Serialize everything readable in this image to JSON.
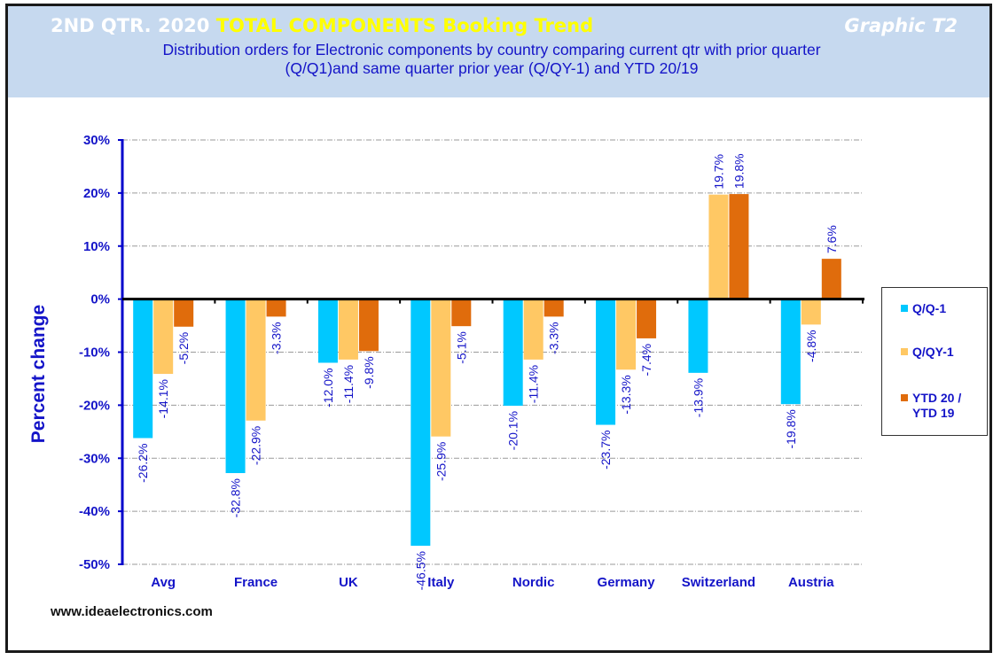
{
  "header": {
    "title_part1": "2ND QTR. 2020",
    "title_part2": "TOTAL COMPONENTS  Booking Trend",
    "graphic_tag": "Graphic T2",
    "subtitle_line1": "Distribution  orders for Electronic components by country comparing  current qtr with prior quarter",
    "subtitle_line2": "(Q/Q1)and  same quarter prior year (Q/QY-1)  and YTD  20/19"
  },
  "footer": {
    "website": "www.ideaelectronics.com"
  },
  "colors": {
    "header_bg": "#c6d9ef",
    "text_blue": "#1414c8",
    "series_qq1": "#00c8ff",
    "series_qqy1": "#ffc864",
    "series_ytd": "#e06c0c"
  },
  "chart_data": {
    "type": "bar",
    "title": "2ND QTR. 2020 TOTAL COMPONENTS Booking Trend",
    "xlabel": "",
    "ylabel": "Percent change",
    "ylim": [
      -50,
      30
    ],
    "yticks": [
      30,
      20,
      10,
      0,
      -10,
      -20,
      -30,
      -40,
      -50
    ],
    "ytick_labels": [
      "30%",
      "20%",
      "10%",
      "0%",
      "-10%",
      "-20%",
      "-30%",
      "-40%",
      "-50%"
    ],
    "grid": true,
    "legend_position": "right",
    "categories": [
      "Avg",
      "France",
      "UK",
      "Italy",
      "Nordic",
      "Germany",
      "Switzerland",
      "Austria"
    ],
    "series": [
      {
        "name": "Q/Q-1",
        "color": "#00c8ff",
        "values": [
          -26.2,
          -32.8,
          -12.0,
          -46.5,
          -20.1,
          -23.7,
          -13.9,
          -19.8
        ],
        "labels": [
          "-26.2%",
          "-32.8%",
          "-12.0%",
          "-46.5%",
          "-20.1%",
          "-23.7%",
          "-13.9%",
          "-19.8%"
        ]
      },
      {
        "name": "Q/QY-1",
        "color": "#ffc864",
        "values": [
          -14.1,
          -22.9,
          -11.4,
          -25.9,
          -11.4,
          -13.3,
          19.7,
          -4.8
        ],
        "labels": [
          "-14.1%",
          "-22.9%",
          "-11.4%",
          "-25.9%",
          "-11.4%",
          "-13.3%",
          "19.7%",
          "-4.8%"
        ]
      },
      {
        "name": "YTD 20 / YTD 19",
        "color": "#e06c0c",
        "values": [
          -5.2,
          -3.3,
          -9.8,
          -5.1,
          -3.3,
          -7.4,
          19.8,
          7.6
        ],
        "labels": [
          "-5.2%",
          "-3.3%",
          "-9.8%",
          "-5.1%",
          "-3.3%",
          "-7.4%",
          "19.8%",
          "7.6%"
        ]
      }
    ],
    "legend_labels": [
      "Q/Q-1",
      "Q/QY-1",
      "YTD 20 /\nYTD 19"
    ]
  }
}
